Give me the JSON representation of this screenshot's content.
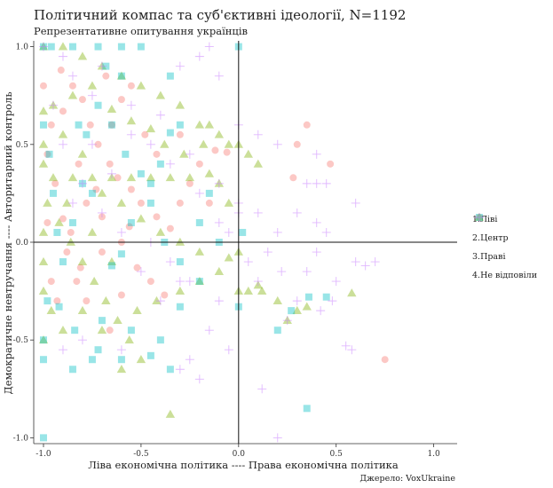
{
  "chart_data": {
    "type": "scatter",
    "title": "Політичний компас та суб'єктивні ідеології, N=1192",
    "subtitle": "Репрезентативне опитування українців",
    "xlabel": "Ліва економічна політика ---- Права економічна політика",
    "ylabel": "Демократичне невтручання ---- Авторитарний контроль",
    "caption": "Джерело: VoxUkraine",
    "xlim": [
      -1.05,
      1.12
    ],
    "ylim": [
      -1.03,
      1.03
    ],
    "xticks": [
      "-1.0",
      "-0.5",
      "0.0",
      "0.5",
      "1.0"
    ],
    "xtick_values": [
      -1.0,
      -0.5,
      0.0,
      0.5,
      1.0
    ],
    "yticks": [
      "-1.0",
      "-0.5",
      "0.0",
      "0.5",
      "1.0"
    ],
    "ytick_values": [
      -1.0,
      -0.5,
      0.0,
      0.5,
      1.0
    ],
    "grid": false,
    "legend_position": "right",
    "series": [
      {
        "name": "1.Ліві",
        "color": "#F8766D",
        "marker": "circle",
        "points": [
          [
            -0.91,
            0.88
          ],
          [
            -0.85,
            0.8
          ],
          [
            -0.8,
            0.73
          ],
          [
            -0.76,
            0.6
          ],
          [
            -0.72,
            0.5
          ],
          [
            -0.66,
            0.4
          ],
          [
            -0.62,
            0.33
          ],
          [
            -0.55,
            0.27
          ],
          [
            -0.5,
            0.2
          ],
          [
            -0.42,
            0.13
          ],
          [
            -0.35,
            0.07
          ],
          [
            -0.3,
            0.2
          ],
          [
            -0.2,
            0.4
          ],
          [
            -0.12,
            0.47
          ],
          [
            -0.06,
            0.46
          ],
          [
            0.28,
            0.33
          ],
          [
            0.3,
            0.5
          ],
          [
            0.35,
            0.6
          ],
          [
            0.47,
            0.4
          ],
          [
            0.75,
            -0.6
          ],
          [
            -0.96,
            0.6
          ],
          [
            -0.98,
            0.45
          ],
          [
            -0.94,
            0.3
          ],
          [
            -0.9,
            0.12
          ],
          [
            -0.88,
            -0.05
          ],
          [
            -0.83,
            -0.2
          ],
          [
            -0.78,
            -0.3
          ],
          [
            -0.7,
            -0.05
          ],
          [
            -0.6,
            0.0
          ],
          [
            -0.52,
            -0.13
          ],
          [
            -0.45,
            -0.2
          ],
          [
            -0.38,
            -0.27
          ],
          [
            -0.6,
            -0.27
          ],
          [
            -0.7,
            0.13
          ],
          [
            -0.82,
            0.4
          ],
          [
            -0.78,
            0.2
          ],
          [
            -0.65,
            0.6
          ],
          [
            -0.55,
            0.8
          ],
          [
            -0.48,
            0.55
          ],
          [
            -0.42,
            0.45
          ],
          [
            -0.9,
            0.67
          ],
          [
            -0.86,
            0.05
          ],
          [
            -0.73,
            0.27
          ],
          [
            -0.68,
            0.85
          ],
          [
            -0.6,
            0.73
          ],
          [
            -1.0,
            0.8
          ],
          [
            -0.98,
            0.1
          ],
          [
            -0.96,
            -0.2
          ],
          [
            -0.56,
            0.08
          ],
          [
            -0.3,
            0.55
          ],
          [
            -0.25,
            0.3
          ],
          [
            -0.15,
            0.2
          ],
          [
            -0.93,
            -0.3
          ],
          [
            -0.81,
            -0.13
          ],
          [
            -0.66,
            -0.45
          ]
        ]
      },
      {
        "name": "2.Центр",
        "color": "#7CAE00",
        "marker": "triangle",
        "points": [
          [
            -1.0,
            1.0
          ],
          [
            -0.9,
            1.0
          ],
          [
            -0.8,
            0.95
          ],
          [
            -0.7,
            0.9
          ],
          [
            -0.6,
            0.85
          ],
          [
            -0.5,
            0.8
          ],
          [
            -0.4,
            0.75
          ],
          [
            -0.3,
            0.7
          ],
          [
            -0.2,
            0.6
          ],
          [
            -0.1,
            0.55
          ],
          [
            -0.05,
            0.5
          ],
          [
            0.0,
            0.5
          ],
          [
            0.05,
            0.45
          ],
          [
            0.1,
            0.4
          ],
          [
            -0.15,
            0.35
          ],
          [
            -0.25,
            0.33
          ],
          [
            -0.35,
            0.33
          ],
          [
            -0.45,
            0.33
          ],
          [
            -0.55,
            0.33
          ],
          [
            -0.65,
            0.33
          ],
          [
            -0.75,
            0.33
          ],
          [
            -0.85,
            0.33
          ],
          [
            -0.95,
            0.33
          ],
          [
            -0.98,
            0.2
          ],
          [
            -0.92,
            0.1
          ],
          [
            -0.86,
            0.0
          ],
          [
            -0.8,
            -0.1
          ],
          [
            -0.74,
            -0.2
          ],
          [
            -0.68,
            -0.3
          ],
          [
            -0.62,
            -0.4
          ],
          [
            -0.56,
            -0.5
          ],
          [
            -0.5,
            -0.6
          ],
          [
            -0.35,
            -0.88
          ],
          [
            0.0,
            -0.25
          ],
          [
            0.05,
            -0.25
          ],
          [
            0.1,
            -0.22
          ],
          [
            0.12,
            -0.25
          ],
          [
            0.2,
            -0.3
          ],
          [
            0.25,
            -0.4
          ],
          [
            0.3,
            -0.35
          ],
          [
            0.35,
            -0.33
          ],
          [
            0.58,
            -0.26
          ],
          [
            -0.05,
            -0.08
          ],
          [
            -0.1,
            -0.15
          ],
          [
            -0.2,
            -0.05
          ],
          [
            -0.3,
            0.0
          ],
          [
            -0.4,
            0.05
          ],
          [
            -0.5,
            0.12
          ],
          [
            -0.6,
            0.2
          ],
          [
            -0.7,
            0.25
          ],
          [
            -0.8,
            0.45
          ],
          [
            -0.9,
            0.55
          ],
          [
            -0.95,
            0.7
          ],
          [
            -0.85,
            0.75
          ],
          [
            -0.75,
            0.8
          ],
          [
            -0.65,
            0.68
          ],
          [
            -0.55,
            0.62
          ],
          [
            -0.45,
            0.58
          ],
          [
            -0.38,
            0.5
          ],
          [
            -0.28,
            0.45
          ],
          [
            -0.18,
            0.5
          ],
          [
            -1.0,
            -0.1
          ],
          [
            -0.96,
            -0.35
          ],
          [
            -0.9,
            -0.45
          ],
          [
            -0.8,
            -0.35
          ],
          [
            -0.7,
            -0.45
          ],
          [
            -0.6,
            -0.65
          ],
          [
            -0.15,
            0.6
          ],
          [
            -0.1,
            0.3
          ],
          [
            -0.05,
            0.2
          ],
          [
            0.0,
            -0.05
          ],
          [
            -0.2,
            -0.2
          ],
          [
            -0.3,
            -0.25
          ],
          [
            -0.42,
            -0.3
          ],
          [
            -0.52,
            -0.35
          ],
          [
            -0.65,
            -0.1
          ],
          [
            -0.75,
            0.05
          ],
          [
            -0.88,
            0.2
          ],
          [
            -1.0,
            0.5
          ],
          [
            -1.0,
            0.67
          ],
          [
            -1.0,
            0.4
          ],
          [
            -1.0,
            0.05
          ],
          [
            -1.0,
            -0.25
          ],
          [
            -1.0,
            -0.5
          ]
        ]
      },
      {
        "name": "3.Праві",
        "color": "#00BFC4",
        "marker": "square",
        "points": [
          [
            -1.0,
            1.0
          ],
          [
            -0.96,
            1.0
          ],
          [
            -0.85,
            1.0
          ],
          [
            -0.72,
            1.0
          ],
          [
            -0.6,
            1.0
          ],
          [
            -0.5,
            1.0
          ],
          [
            0.0,
            1.0
          ],
          [
            -1.0,
            -1.0
          ],
          [
            -0.35,
            0.85
          ],
          [
            -0.3,
            0.6
          ],
          [
            -0.35,
            0.56
          ],
          [
            -0.4,
            0.4
          ],
          [
            -0.45,
            0.3
          ],
          [
            -0.55,
            0.1
          ],
          [
            -0.6,
            -0.06
          ],
          [
            -0.65,
            -0.12
          ],
          [
            -0.7,
            -0.4
          ],
          [
            -0.75,
            -0.6
          ],
          [
            -0.85,
            -0.65
          ],
          [
            -0.6,
            -0.6
          ],
          [
            -0.45,
            -0.58
          ],
          [
            -0.4,
            -0.5
          ],
          [
            -0.3,
            -0.33
          ],
          [
            -0.2,
            -0.2
          ],
          [
            0.0,
            -0.33
          ],
          [
            0.2,
            -0.45
          ],
          [
            0.27,
            -0.35
          ],
          [
            0.36,
            -0.28
          ],
          [
            0.45,
            -0.28
          ],
          [
            0.35,
            -0.85
          ],
          [
            -1.0,
            0.6
          ],
          [
            -0.97,
            0.45
          ],
          [
            -0.95,
            0.25
          ],
          [
            -0.93,
            0.05
          ],
          [
            -0.9,
            -0.1
          ],
          [
            -0.85,
            0.1
          ],
          [
            -0.8,
            0.3
          ],
          [
            -0.78,
            0.55
          ],
          [
            -0.72,
            0.7
          ],
          [
            -0.65,
            0.6
          ],
          [
            -0.58,
            0.45
          ],
          [
            -0.5,
            0.35
          ],
          [
            -0.45,
            0.2
          ],
          [
            -0.38,
            0.0
          ],
          [
            -0.3,
            -0.1
          ],
          [
            -0.2,
            0.1
          ],
          [
            -0.15,
            0.25
          ],
          [
            -0.1,
            0.0
          ],
          [
            0.02,
            0.05
          ],
          [
            -1.0,
            -0.5
          ],
          [
            -1.0,
            -0.6
          ],
          [
            -0.98,
            -0.3
          ],
          [
            -0.92,
            -0.33
          ],
          [
            -0.84,
            -0.45
          ],
          [
            -0.72,
            -0.55
          ],
          [
            -0.55,
            -0.45
          ],
          [
            -0.35,
            -0.65
          ],
          [
            -0.6,
            0.85
          ],
          [
            -0.68,
            0.9
          ],
          [
            -0.75,
            0.25
          ],
          [
            -0.82,
            0.6
          ]
        ]
      },
      {
        "name": "4.Не відповіли",
        "color": "#C77CFF",
        "marker": "plus",
        "points": [
          [
            -1.0,
            1.0
          ],
          [
            -0.9,
            0.95
          ],
          [
            -0.7,
            0.9
          ],
          [
            -0.3,
            0.9
          ],
          [
            -0.2,
            0.95
          ],
          [
            -0.15,
            1.0
          ],
          [
            -0.1,
            0.85
          ],
          [
            0.0,
            0.6
          ],
          [
            0.1,
            0.55
          ],
          [
            0.2,
            0.5
          ],
          [
            0.4,
            0.45
          ],
          [
            0.4,
            0.3
          ],
          [
            0.45,
            0.3
          ],
          [
            0.35,
            0.3
          ],
          [
            0.1,
            0.15
          ],
          [
            0.0,
            0.2
          ],
          [
            -0.1,
            0.1
          ],
          [
            0.15,
            -0.05
          ],
          [
            0.22,
            -0.15
          ],
          [
            0.3,
            -0.3
          ],
          [
            0.6,
            -0.1
          ],
          [
            0.65,
            -0.12
          ],
          [
            0.48,
            -0.3
          ],
          [
            0.55,
            -0.53
          ],
          [
            0.58,
            -0.55
          ],
          [
            0.42,
            -0.35
          ],
          [
            0.25,
            -0.4
          ],
          [
            0.12,
            -0.75
          ],
          [
            0.2,
            -1.0
          ],
          [
            -0.3,
            -0.65
          ],
          [
            -0.25,
            -0.6
          ],
          [
            -0.4,
            -0.3
          ],
          [
            -0.5,
            -0.15
          ],
          [
            -0.6,
            0.05
          ],
          [
            -0.7,
            0.15
          ],
          [
            -0.8,
            0.3
          ],
          [
            -0.9,
            0.5
          ],
          [
            -0.95,
            0.7
          ],
          [
            -0.85,
            0.2
          ],
          [
            -0.75,
            0.5
          ],
          [
            -0.65,
            0.35
          ],
          [
            -0.55,
            0.55
          ],
          [
            -0.45,
            0.5
          ],
          [
            -0.35,
            0.4
          ],
          [
            -0.25,
            0.45
          ],
          [
            -0.2,
            0.25
          ],
          [
            -0.1,
            0.3
          ],
          [
            0.0,
            0.15
          ],
          [
            0.05,
            -0.1
          ],
          [
            0.1,
            -0.2
          ],
          [
            -0.3,
            -0.2
          ],
          [
            -0.35,
            -0.1
          ],
          [
            -0.45,
            0.0
          ],
          [
            0.4,
            0.1
          ],
          [
            0.45,
            0.05
          ],
          [
            0.6,
            0.2
          ],
          [
            0.7,
            -0.1
          ],
          [
            0.5,
            -0.2
          ],
          [
            -0.9,
            -0.55
          ],
          [
            -0.8,
            -0.5
          ],
          [
            -0.6,
            -0.55
          ],
          [
            -0.15,
            -0.45
          ],
          [
            -0.05,
            -0.55
          ],
          [
            -0.2,
            -0.7
          ],
          [
            -0.25,
            -0.2
          ],
          [
            -0.05,
            0.05
          ],
          [
            -0.1,
            -0.3
          ],
          [
            -0.85,
            0.85
          ],
          [
            -0.75,
            0.75
          ],
          [
            -0.55,
            0.7
          ],
          [
            -0.4,
            0.65
          ],
          [
            0.4,
            -0.05
          ],
          [
            0.3,
            0.15
          ],
          [
            0.2,
            0.05
          ],
          [
            0.35,
            -0.15
          ]
        ]
      }
    ]
  }
}
